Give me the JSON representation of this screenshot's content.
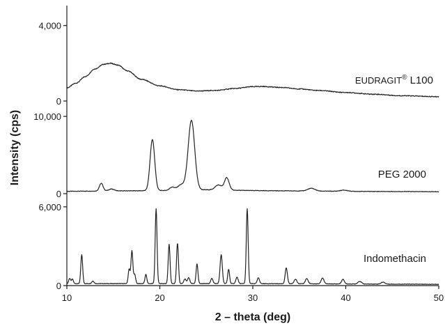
{
  "chart_data": {
    "type": "line",
    "title": "",
    "xlabel": "2 – theta (deg)",
    "ylabel": "Intensity (cps)",
    "xlim": [
      10,
      50
    ],
    "xticks": [
      "10",
      "20",
      "30",
      "40",
      "50"
    ],
    "grid": false,
    "legend": "none",
    "series": [
      {
        "name": "EUDRAGIT® L100",
        "label_main": "EUDRAGIT",
        "label_sup": "®",
        "label_tail": " L100",
        "ylim": [
          0,
          4800
        ],
        "yticks": [
          "0",
          "4,000"
        ],
        "kind": "smooth",
        "x": [
          10,
          11,
          12,
          13,
          14,
          14.7,
          15.5,
          16.5,
          18,
          20,
          22,
          24,
          26,
          28,
          30,
          31,
          33,
          35,
          37,
          40,
          43,
          46,
          50
        ],
        "y": [
          700,
          950,
          1300,
          1700,
          1950,
          2000,
          1900,
          1600,
          1150,
          800,
          600,
          530,
          560,
          660,
          760,
          770,
          720,
          640,
          560,
          450,
          360,
          280,
          230
        ]
      },
      {
        "name": "PEG 2000",
        "label_main": "PEG 2000",
        "label_sup": "",
        "label_tail": "",
        "ylim": [
          0,
          11000
        ],
        "yticks": [
          "0",
          "10,000"
        ],
        "kind": "peaks",
        "baseline": [
          [
            10,
            300
          ],
          [
            20,
            400
          ],
          [
            25,
            500
          ],
          [
            30,
            400
          ],
          [
            40,
            300
          ],
          [
            50,
            250
          ]
        ],
        "peaks": [
          {
            "x": 13.7,
            "h": 1000,
            "w": 0.2
          },
          {
            "x": 14.8,
            "h": 250,
            "w": 0.3
          },
          {
            "x": 19.2,
            "h": 6600,
            "w": 0.25
          },
          {
            "x": 21.3,
            "h": 400,
            "w": 0.25
          },
          {
            "x": 22.3,
            "h": 700,
            "w": 0.4
          },
          {
            "x": 23.4,
            "h": 9000,
            "w": 0.35
          },
          {
            "x": 26.3,
            "h": 650,
            "w": 0.35
          },
          {
            "x": 27.2,
            "h": 1600,
            "w": 0.25
          },
          {
            "x": 36.3,
            "h": 350,
            "w": 0.4
          },
          {
            "x": 39.8,
            "h": 150,
            "w": 0.4
          }
        ]
      },
      {
        "name": "Indomethacin",
        "label_main": "Indomethacin",
        "label_sup": "",
        "label_tail": "",
        "ylim": [
          0,
          6100
        ],
        "yticks": [
          "0",
          "6,000"
        ],
        "kind": "peaks",
        "baseline": [
          [
            10,
            150
          ],
          [
            30,
            150
          ],
          [
            50,
            100
          ]
        ],
        "peaks": [
          {
            "x": 10.3,
            "h": 400,
            "w": 0.1
          },
          {
            "x": 10.6,
            "h": 350,
            "w": 0.1
          },
          {
            "x": 11.6,
            "h": 2200,
            "w": 0.1
          },
          {
            "x": 12.8,
            "h": 200,
            "w": 0.12
          },
          {
            "x": 16.7,
            "h": 1100,
            "w": 0.1
          },
          {
            "x": 17.0,
            "h": 2500,
            "w": 0.1
          },
          {
            "x": 17.3,
            "h": 700,
            "w": 0.1
          },
          {
            "x": 18.5,
            "h": 700,
            "w": 0.1
          },
          {
            "x": 19.6,
            "h": 5700,
            "w": 0.1
          },
          {
            "x": 21.0,
            "h": 3000,
            "w": 0.1
          },
          {
            "x": 21.9,
            "h": 3100,
            "w": 0.1
          },
          {
            "x": 22.7,
            "h": 350,
            "w": 0.12
          },
          {
            "x": 23.1,
            "h": 450,
            "w": 0.12
          },
          {
            "x": 24.0,
            "h": 1500,
            "w": 0.1
          },
          {
            "x": 25.6,
            "h": 400,
            "w": 0.12
          },
          {
            "x": 26.6,
            "h": 2200,
            "w": 0.12
          },
          {
            "x": 27.4,
            "h": 1100,
            "w": 0.1
          },
          {
            "x": 28.3,
            "h": 500,
            "w": 0.12
          },
          {
            "x": 29.4,
            "h": 5700,
            "w": 0.1
          },
          {
            "x": 30.6,
            "h": 450,
            "w": 0.12
          },
          {
            "x": 33.6,
            "h": 1200,
            "w": 0.12
          },
          {
            "x": 34.6,
            "h": 350,
            "w": 0.15
          },
          {
            "x": 35.8,
            "h": 400,
            "w": 0.15
          },
          {
            "x": 37.5,
            "h": 450,
            "w": 0.15
          },
          {
            "x": 39.7,
            "h": 350,
            "w": 0.15
          },
          {
            "x": 41.5,
            "h": 200,
            "w": 0.2
          },
          {
            "x": 44.0,
            "h": 150,
            "w": 0.2
          }
        ]
      }
    ]
  }
}
